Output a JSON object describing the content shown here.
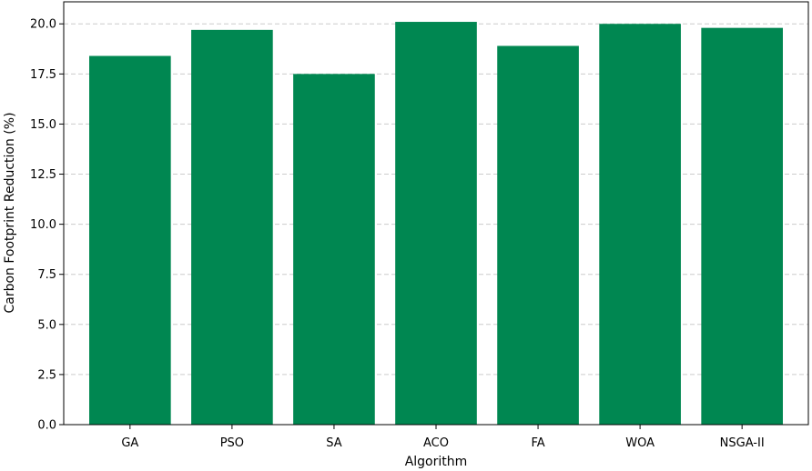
{
  "chart_data": {
    "type": "bar",
    "title": "",
    "xlabel": "Algorithm",
    "ylabel": "Carbon Footprint Reduction (%)",
    "categories": [
      "GA",
      "PSO",
      "SA",
      "ACO",
      "FA",
      "WOA",
      "NSGA-II"
    ],
    "values": [
      18.4,
      19.7,
      17.5,
      20.1,
      18.9,
      20.0,
      19.8
    ],
    "ylim": [
      0,
      21.1
    ],
    "yticks": [
      "0.0",
      "2.5",
      "5.0",
      "7.5",
      "10.0",
      "12.5",
      "15.0",
      "17.5",
      "20.0"
    ],
    "grid": "y-dashed",
    "bar_color": "#008751",
    "grid_color": "#cccccc"
  }
}
